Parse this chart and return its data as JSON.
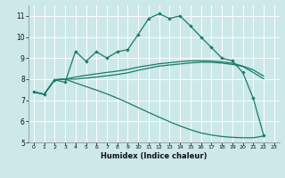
{
  "xlabel": "Humidex (Indice chaleur)",
  "bg_color": "#cce8e8",
  "grid_color": "#b8d8d8",
  "line_color": "#1a7a6a",
  "xlim": [
    -0.5,
    23.5
  ],
  "ylim": [
    5.0,
    11.5
  ],
  "xticks": [
    0,
    1,
    2,
    3,
    4,
    5,
    6,
    7,
    8,
    9,
    10,
    11,
    12,
    13,
    14,
    15,
    16,
    17,
    18,
    19,
    20,
    21,
    22,
    23
  ],
  "yticks": [
    5,
    6,
    7,
    8,
    9,
    10,
    11
  ],
  "line1_x": [
    0,
    1,
    2,
    3,
    4,
    5,
    6,
    7,
    8,
    9,
    10,
    11,
    12,
    13,
    14,
    15,
    16,
    17,
    18,
    19,
    20,
    21,
    22
  ],
  "line1_y": [
    7.4,
    7.28,
    7.97,
    7.85,
    9.32,
    8.85,
    9.3,
    9.0,
    9.3,
    9.4,
    10.12,
    10.88,
    11.1,
    10.88,
    11.0,
    10.52,
    10.0,
    9.5,
    9.0,
    8.87,
    8.32,
    7.1,
    5.35
  ],
  "line2_x": [
    0,
    1,
    2,
    3,
    4,
    5,
    6,
    7,
    8,
    9,
    10,
    11,
    12,
    13,
    14,
    15,
    16,
    17,
    18,
    19,
    20,
    21,
    22
  ],
  "line2_y": [
    7.4,
    7.28,
    7.97,
    8.0,
    8.1,
    8.18,
    8.25,
    8.32,
    8.38,
    8.46,
    8.57,
    8.65,
    8.73,
    8.78,
    8.83,
    8.87,
    8.87,
    8.86,
    8.82,
    8.76,
    8.62,
    8.44,
    8.15
  ],
  "line3_x": [
    0,
    1,
    2,
    3,
    4,
    5,
    6,
    7,
    8,
    9,
    10,
    11,
    12,
    13,
    14,
    15,
    16,
    17,
    18,
    19,
    20,
    21,
    22
  ],
  "line3_y": [
    7.4,
    7.28,
    7.97,
    8.0,
    8.0,
    8.05,
    8.1,
    8.16,
    8.22,
    8.3,
    8.42,
    8.52,
    8.62,
    8.67,
    8.72,
    8.77,
    8.8,
    8.8,
    8.76,
    8.7,
    8.6,
    8.32,
    8.02
  ],
  "line4_x": [
    0,
    1,
    2,
    3,
    4,
    5,
    6,
    7,
    8,
    9,
    10,
    11,
    12,
    13,
    14,
    15,
    16,
    17,
    18,
    19,
    20,
    21,
    22
  ],
  "line4_y": [
    7.4,
    7.28,
    7.97,
    8.0,
    7.82,
    7.65,
    7.48,
    7.3,
    7.1,
    6.88,
    6.65,
    6.42,
    6.2,
    5.98,
    5.78,
    5.6,
    5.45,
    5.35,
    5.28,
    5.24,
    5.22,
    5.22,
    5.3
  ]
}
